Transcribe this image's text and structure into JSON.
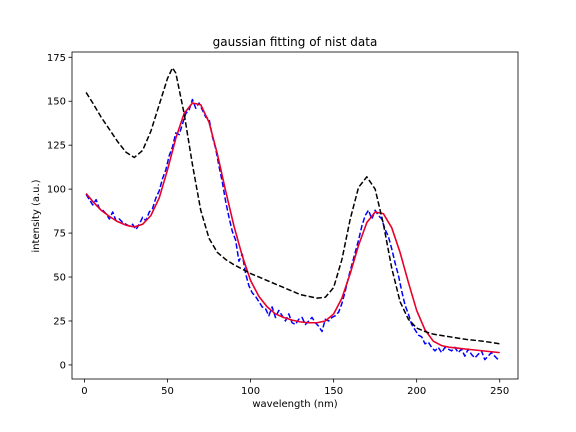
{
  "chart_data": {
    "type": "line",
    "title": "gaussian fitting of nist data",
    "xlabel": "wavelength (nm)",
    "ylabel": "intensity (a.u.)",
    "xlim": [
      -7.5,
      261
    ],
    "ylim": [
      -8,
      178
    ],
    "xticks": [
      0,
      50,
      100,
      150,
      200,
      250
    ],
    "yticks": [
      0,
      25,
      50,
      75,
      100,
      125,
      150,
      175
    ],
    "grid": false,
    "legend": "none",
    "series": [
      {
        "style": "noisy data (blue dashed)",
        "color": "#0000ff",
        "dash": "dashed",
        "x": [
          1,
          3,
          5,
          7,
          9,
          11,
          13,
          15,
          17,
          19,
          21,
          23,
          25,
          27,
          29,
          31,
          33,
          35,
          37,
          39,
          41,
          43,
          45,
          47,
          49,
          51,
          53,
          55,
          57,
          59,
          61,
          63,
          65,
          67,
          69,
          71,
          73,
          75,
          77,
          79,
          81,
          83,
          85,
          87,
          89,
          91,
          93,
          95,
          97,
          99,
          101,
          103,
          105,
          107,
          109,
          111,
          113,
          115,
          117,
          119,
          121,
          123,
          125,
          127,
          129,
          131,
          133,
          135,
          137,
          139,
          141,
          143,
          145,
          147,
          149,
          151,
          153,
          155,
          157,
          159,
          161,
          163,
          165,
          167,
          169,
          171,
          173,
          175,
          177,
          179,
          181,
          183,
          185,
          187,
          189,
          191,
          193,
          195,
          197,
          199,
          201,
          203,
          205,
          207,
          209,
          211,
          213,
          215,
          217,
          219,
          221,
          223,
          225,
          227,
          229,
          231,
          233,
          235,
          237,
          239,
          241,
          243,
          245,
          247,
          249
        ],
        "y": [
          97,
          94,
          91,
          94,
          89,
          88,
          86,
          83,
          87,
          82,
          83,
          81,
          80,
          79,
          80,
          77,
          80,
          84,
          82,
          87,
          89,
          95,
          99,
          106,
          111,
          119,
          124,
          132,
          131,
          137,
          143,
          145,
          151,
          146,
          149,
          145,
          141,
          140,
          130,
          123,
          113,
          104,
          93,
          84,
          76,
          71,
          59,
          63,
          52,
          45,
          41,
          39,
          36,
          33,
          32,
          28,
          33,
          27,
          31,
          28,
          25,
          29,
          24,
          23,
          26,
          27,
          23,
          25,
          27,
          24,
          22,
          19,
          26,
          25,
          27,
          28,
          30,
          35,
          42,
          50,
          57,
          64,
          71,
          79,
          85,
          88,
          83,
          88,
          85,
          83,
          77,
          73,
          66,
          58,
          51,
          42,
          34,
          29,
          23,
          20,
          17,
          16,
          12,
          13,
          10,
          8,
          10,
          7,
          10,
          9,
          8,
          10,
          7,
          9,
          5,
          9,
          6,
          4,
          6,
          8,
          3,
          5,
          7,
          5,
          3
        ]
      },
      {
        "style": "gaussian fit (red solid)",
        "color": "#e8002a",
        "dash": "solid",
        "x": [
          1,
          5,
          10,
          15,
          20,
          25,
          30,
          35,
          40,
          45,
          50,
          55,
          60,
          65,
          70,
          75,
          80,
          85,
          90,
          95,
          100,
          105,
          110,
          115,
          120,
          125,
          130,
          135,
          140,
          145,
          150,
          155,
          160,
          165,
          170,
          175,
          180,
          185,
          190,
          195,
          200,
          205,
          210,
          215,
          220,
          225,
          230,
          235,
          240,
          245,
          250
        ],
        "y": [
          97.5,
          93,
          88,
          84.5,
          81.5,
          79.5,
          78.5,
          80,
          85,
          95,
          111,
          129,
          143,
          149,
          148,
          138,
          120,
          99,
          79,
          62,
          48,
          39,
          33,
          29,
          27,
          25.5,
          24.5,
          24,
          24,
          25,
          29,
          38,
          52,
          68,
          81,
          87,
          86,
          78,
          64,
          47,
          31,
          20,
          13.5,
          11,
          10,
          9.5,
          9,
          8.5,
          8,
          7.5,
          7
        ]
      },
      {
        "style": "reference spectrum (black dashed)",
        "color": "#000000",
        "dash": "dashed",
        "x": [
          1,
          5,
          10,
          15,
          20,
          25,
          30,
          35,
          40,
          45,
          50,
          53,
          55,
          60,
          65,
          70,
          75,
          80,
          85,
          90,
          100,
          110,
          120,
          130,
          140,
          145,
          150,
          155,
          160,
          165,
          170,
          175,
          180,
          185,
          190,
          195,
          200,
          205,
          210,
          220,
          230,
          240,
          250
        ],
        "y": [
          155,
          149,
          141,
          134,
          127,
          121,
          118,
          122,
          133,
          148,
          163,
          169,
          166,
          143,
          114,
          88,
          72,
          64,
          60,
          57,
          52,
          48,
          44,
          40,
          38,
          38.5,
          44,
          60,
          83,
          101,
          107,
          100,
          80,
          55,
          36,
          26,
          21,
          19,
          17.5,
          16,
          14.5,
          13.5,
          12
        ]
      }
    ]
  }
}
